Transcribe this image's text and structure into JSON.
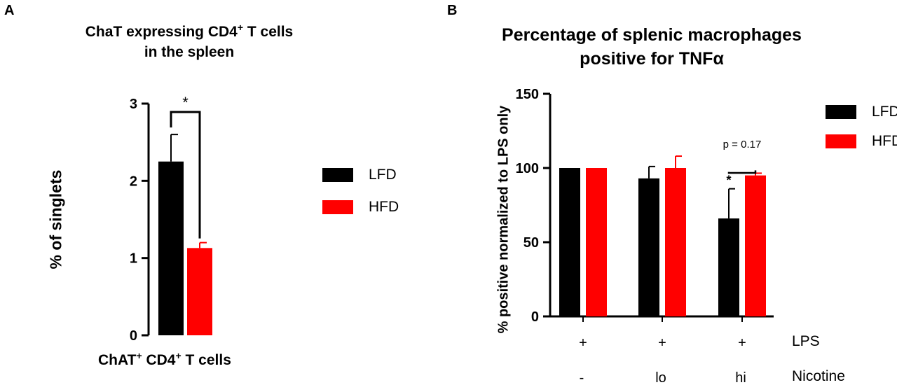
{
  "panel_a": {
    "letter": "A",
    "title_line1": "ChaT expressing CD4",
    "title_sup": "+",
    "title_line1_end": " T cells",
    "title_line2": "in the spleen",
    "xlabel_p1": "ChAT",
    "xlabel_sup1": "+",
    "xlabel_p2": " CD4",
    "xlabel_sup2": "+",
    "xlabel_p3": " T cells",
    "ylabel": "% of singlets",
    "significance": "*"
  },
  "panel_b": {
    "letter": "B",
    "title_line1": "Percentage of splenic macrophages",
    "title_line2": "positive for TNFα",
    "ylabel": "% positive normalized to LPS only",
    "significance_star": "*",
    "p_value_label": "p = 0.17",
    "lps_label": "LPS",
    "nicotine_label": "Nicotine",
    "lps_values": [
      "+",
      "+",
      "+"
    ],
    "nicotine_values": [
      "-",
      "lo",
      "hi"
    ]
  },
  "legend": {
    "lfd": "LFD",
    "hfd": "HFD"
  },
  "colors": {
    "lfd": "#000000",
    "hfd": "#ff0000"
  },
  "chart_data": [
    {
      "type": "bar",
      "title": "ChaT expressing CD4+ T cells in the spleen",
      "categories": [
        "ChAT+ CD4+ T cells"
      ],
      "series": [
        {
          "name": "LFD",
          "values": [
            2.25
          ],
          "error": [
            0.35
          ]
        },
        {
          "name": "HFD",
          "values": [
            1.13
          ],
          "error": [
            0.07
          ]
        }
      ],
      "xlabel": "ChAT+ CD4+ T cells",
      "ylabel": "% of singlets",
      "ylim": [
        0,
        3
      ],
      "yticks": [
        0,
        1,
        2,
        3
      ],
      "annotations": [
        {
          "text": "*",
          "between": [
            "LFD",
            "HFD"
          ]
        }
      ]
    },
    {
      "type": "bar",
      "title": "Percentage of splenic macrophages positive for TNFα",
      "categories": [
        "- (LPS +)",
        "lo (LPS +)",
        "hi (LPS +)"
      ],
      "series": [
        {
          "name": "LFD",
          "values": [
            100,
            93,
            66
          ],
          "error": [
            0,
            8,
            20
          ]
        },
        {
          "name": "HFD",
          "values": [
            100,
            100,
            95
          ],
          "error": [
            0,
            8,
            1.5
          ]
        }
      ],
      "xlabel": "",
      "ylabel": "% positive normalized to LPS only",
      "ylim": [
        0,
        150
      ],
      "yticks": [
        0,
        50,
        100,
        150
      ],
      "annotations": [
        {
          "text": "*",
          "on": "LFD",
          "category": 2
        },
        {
          "text": "p = 0.17",
          "between": [
            "LFD",
            "HFD"
          ],
          "category": 2
        }
      ]
    }
  ]
}
